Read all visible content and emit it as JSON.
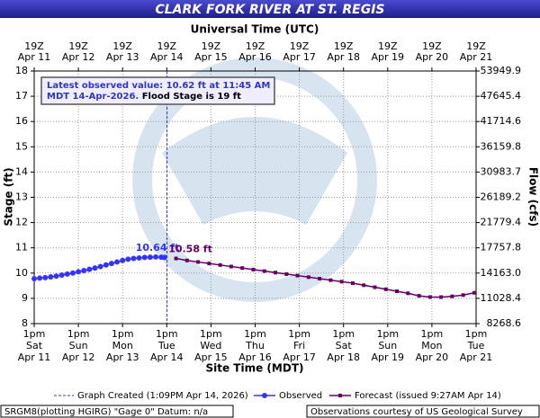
{
  "chart_data": {
    "type": "line",
    "title": "CLARK FORK RIVER AT ST. REGIS",
    "x_title": "Site Time (MDT)",
    "x2_title": "Universal Time (UTC)",
    "y_title": "Stage (ft)",
    "y2_title": "Flow (cfs)",
    "xlim": [
      "2026-04-11T13:00",
      "2026-04-21T13:00"
    ],
    "xticks": [
      {
        "value": "2026-04-11T13:00",
        "label": [
          "1pm",
          "Sat",
          "Apr 11"
        ]
      },
      {
        "value": "2026-04-12T13:00",
        "label": [
          "1pm",
          "Sun",
          "Apr 12"
        ]
      },
      {
        "value": "2026-04-13T13:00",
        "label": [
          "1pm",
          "Mon",
          "Apr 13"
        ]
      },
      {
        "value": "2026-04-14T13:00",
        "label": [
          "1pm",
          "Tue",
          "Apr 14"
        ]
      },
      {
        "value": "2026-04-15T13:00",
        "label": [
          "1pm",
          "Wed",
          "Apr 15"
        ]
      },
      {
        "value": "2026-04-16T13:00",
        "label": [
          "1pm",
          "Thu",
          "Apr 16"
        ]
      },
      {
        "value": "2026-04-17T13:00",
        "label": [
          "1pm",
          "Fri",
          "Apr 17"
        ]
      },
      {
        "value": "2026-04-18T13:00",
        "label": [
          "1pm",
          "Sat",
          "Apr 18"
        ]
      },
      {
        "value": "2026-04-19T13:00",
        "label": [
          "1pm",
          "Sun",
          "Apr 19"
        ]
      },
      {
        "value": "2026-04-20T13:00",
        "label": [
          "1pm",
          "Mon",
          "Apr 20"
        ]
      },
      {
        "value": "2026-04-21T13:00",
        "label": [
          "1pm",
          "Tue",
          "Apr 21"
        ]
      }
    ],
    "x2ticks": [
      {
        "value": "2026-04-11T13:00",
        "label": [
          "19Z",
          "Apr 11"
        ]
      },
      {
        "value": "2026-04-12T13:00",
        "label": [
          "19Z",
          "Apr 12"
        ]
      },
      {
        "value": "2026-04-13T13:00",
        "label": [
          "19Z",
          "Apr 13"
        ]
      },
      {
        "value": "2026-04-14T13:00",
        "label": [
          "19Z",
          "Apr 14"
        ]
      },
      {
        "value": "2026-04-15T13:00",
        "label": [
          "19Z",
          "Apr 15"
        ]
      },
      {
        "value": "2026-04-16T13:00",
        "label": [
          "19Z",
          "Apr 16"
        ]
      },
      {
        "value": "2026-04-17T13:00",
        "label": [
          "19Z",
          "Apr 17"
        ]
      },
      {
        "value": "2026-04-18T13:00",
        "label": [
          "19Z",
          "Apr 18"
        ]
      },
      {
        "value": "2026-04-19T13:00",
        "label": [
          "19Z",
          "Apr 19"
        ]
      },
      {
        "value": "2026-04-20T13:00",
        "label": [
          "19Z",
          "Apr 20"
        ]
      },
      {
        "value": "2026-04-21T13:00",
        "label": [
          "19Z",
          "Apr 21"
        ]
      }
    ],
    "ylim": [
      8,
      18
    ],
    "yticks": [
      8,
      9,
      10,
      11,
      12,
      13,
      14,
      15,
      16,
      17,
      18
    ],
    "y2ticks": [
      8268.6,
      11028.4,
      {
        "value": 14163,
        "label": "14163.0"
      },
      17757.8,
      21779.4,
      26189.2,
      30983.7,
      36159.8,
      41714.6,
      47645.4,
      53949.9
    ],
    "grid": true,
    "series": [
      {
        "name": "Observed",
        "color": "#3333ff",
        "marker": "circle",
        "x": [
          "2026-04-11T13:00",
          "2026-04-11T16:00",
          "2026-04-11T19:00",
          "2026-04-11T22:00",
          "2026-04-12T01:00",
          "2026-04-12T04:00",
          "2026-04-12T07:00",
          "2026-04-12T10:00",
          "2026-04-12T13:00",
          "2026-04-12T16:00",
          "2026-04-12T19:00",
          "2026-04-12T22:00",
          "2026-04-13T01:00",
          "2026-04-13T04:00",
          "2026-04-13T07:00",
          "2026-04-13T10:00",
          "2026-04-13T13:00",
          "2026-04-13T16:00",
          "2026-04-13T19:00",
          "2026-04-13T22:00",
          "2026-04-14T01:00",
          "2026-04-14T04:00",
          "2026-04-14T07:00",
          "2026-04-14T10:00",
          "2026-04-14T11:45"
        ],
        "values": [
          9.78,
          9.8,
          9.82,
          9.85,
          9.88,
          9.92,
          9.96,
          10.0,
          10.05,
          10.1,
          10.15,
          10.2,
          10.26,
          10.32,
          10.38,
          10.44,
          10.5,
          10.55,
          10.58,
          10.6,
          10.62,
          10.63,
          10.64,
          10.63,
          10.62
        ]
      },
      {
        "name": "Forecast (issued 9:27AM Apr 14)",
        "color": "#660066",
        "marker": "square",
        "x": [
          "2026-04-14T18:00",
          "2026-04-15T00:00",
          "2026-04-15T06:00",
          "2026-04-15T12:00",
          "2026-04-15T18:00",
          "2026-04-16T00:00",
          "2026-04-16T06:00",
          "2026-04-16T12:00",
          "2026-04-16T18:00",
          "2026-04-17T00:00",
          "2026-04-17T06:00",
          "2026-04-17T12:00",
          "2026-04-17T18:00",
          "2026-04-18T00:00",
          "2026-04-18T06:00",
          "2026-04-18T12:00",
          "2026-04-18T18:00",
          "2026-04-19T00:00",
          "2026-04-19T06:00",
          "2026-04-19T12:00",
          "2026-04-19T18:00",
          "2026-04-20T00:00",
          "2026-04-20T06:00",
          "2026-04-20T12:00",
          "2026-04-20T18:00",
          "2026-04-21T00:00",
          "2026-04-21T06:00",
          "2026-04-21T12:00"
        ],
        "values": [
          10.58,
          10.5,
          10.44,
          10.38,
          10.32,
          10.26,
          10.2,
          10.14,
          10.08,
          10.02,
          9.96,
          9.9,
          9.84,
          9.78,
          9.72,
          9.66,
          9.6,
          9.52,
          9.44,
          9.36,
          9.28,
          9.2,
          9.1,
          9.05,
          9.05,
          9.08,
          9.13,
          9.22
        ]
      }
    ],
    "annotations": [
      "10.64 ft",
      "10.58 ft"
    ],
    "info": {
      "observed": "Latest observed value: 10.62 ft at 11:45 AM MDT 14-Apr-2026.",
      "flood": "Flood Stage is 19 ft"
    },
    "created": {
      "label": "Graph Created (1:09PM Apr 14, 2026)",
      "x": "2026-04-14T13:09"
    },
    "footer": {
      "left": "SRGM8(plotting HGIRG) \"Gage 0\" Datum: n/a",
      "right": "Observations courtesy of US Geological Survey"
    }
  }
}
